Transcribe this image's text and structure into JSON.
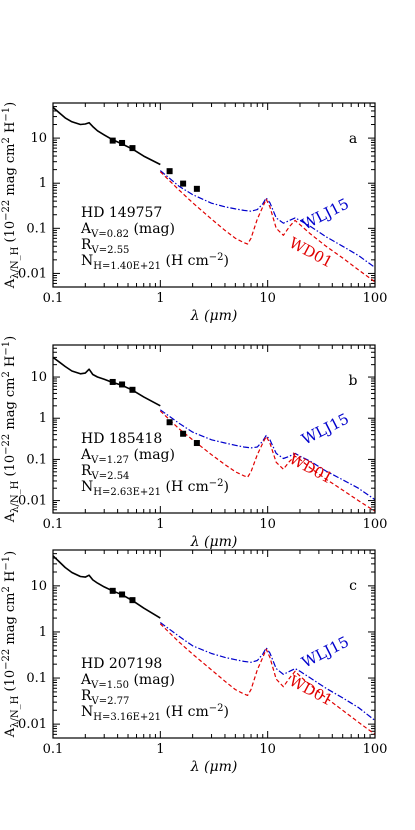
{
  "figure": {
    "y_axis_label": "A_λ/N_H (10^-22 mag cm^2 H^-1)",
    "x_axis_label": "λ (μm)"
  },
  "colors": {
    "obs": "#000000",
    "wlj15": "#0000cc",
    "wd01": "#e00000"
  },
  "chart_data": [
    {
      "type": "line",
      "panel_letter": "a",
      "star": "HD 149757",
      "annotations": [
        "HD 149757",
        "A_V=0.82 (mag)",
        "R_V=2.55",
        "N_H=1.40E+21 (H cm^-2)"
      ],
      "xlabel": "λ (μm)",
      "ylabel": "A_λ/N_H (10^-22 mag cm^2 H^-1)",
      "x_scale": "log",
      "y_scale": "log",
      "xlim": [
        0.1,
        100
      ],
      "ylim": [
        0.005,
        60
      ],
      "x_ticks": [
        "0.1",
        "1",
        "10",
        "100"
      ],
      "y_ticks": [
        "0.01",
        "0.1",
        "1",
        "10"
      ],
      "series": [
        {
          "name": "observed extinction curve",
          "style": "solid",
          "x": [
            0.1,
            0.115,
            0.13,
            0.15,
            0.18,
            0.2,
            0.217,
            0.235,
            0.26,
            0.3,
            0.35,
            0.44,
            0.55,
            0.7,
            1.0
          ],
          "y": [
            48,
            36,
            28,
            23,
            20,
            20.5,
            22,
            18,
            14.5,
            11.8,
            9.5,
            7.4,
            5.7,
            4.0,
            2.6
          ]
        },
        {
          "name": "WLJ15",
          "style": "dashdot",
          "x": [
            1.0,
            1.5,
            2.0,
            3.0,
            4.0,
            5.0,
            6.0,
            7.0,
            8.0,
            9.0,
            9.7,
            10.5,
            12.0,
            14.0,
            16.0,
            18.0,
            20.0,
            25.0,
            35.0,
            50.0,
            70.0,
            100.0
          ],
          "y": [
            1.9,
            0.85,
            0.56,
            0.36,
            0.3,
            0.27,
            0.25,
            0.24,
            0.26,
            0.35,
            0.47,
            0.37,
            0.17,
            0.13,
            0.15,
            0.17,
            0.15,
            0.11,
            0.065,
            0.04,
            0.025,
            0.0135
          ]
        },
        {
          "name": "WD01",
          "style": "dashed",
          "x": [
            1.0,
            1.5,
            2.0,
            3.0,
            4.0,
            5.0,
            6.0,
            6.5,
            7.0,
            8.0,
            9.0,
            9.7,
            10.5,
            12.0,
            14.0,
            16.0,
            18.0,
            20.0,
            25.0,
            35.0,
            50.0,
            70.0,
            100.0
          ],
          "y": [
            1.8,
            0.7,
            0.37,
            0.16,
            0.09,
            0.06,
            0.048,
            0.045,
            0.06,
            0.16,
            0.3,
            0.44,
            0.3,
            0.1,
            0.07,
            0.11,
            0.15,
            0.12,
            0.075,
            0.04,
            0.022,
            0.012,
            0.0065
          ]
        },
        {
          "name": "photometric points",
          "style": "markers",
          "x": [
            0.36,
            0.44,
            0.55,
            1.22,
            1.63,
            2.19
          ],
          "y": [
            8.8,
            7.8,
            6.0,
            1.85,
            0.98,
            0.75
          ]
        }
      ]
    },
    {
      "type": "line",
      "panel_letter": "b",
      "star": "HD 185418",
      "annotations": [
        "HD 185418",
        "A_V=1.27 (mag)",
        "R_V=2.54",
        "N_H=2.63E+21 (H cm^-2)"
      ],
      "xlabel": "λ (μm)",
      "ylabel": "A_λ/N_H (10^-22 mag cm^2 H^-1)",
      "x_scale": "log",
      "y_scale": "log",
      "xlim": [
        0.1,
        100
      ],
      "ylim": [
        0.005,
        60
      ],
      "x_ticks": [
        "0.1",
        "1",
        "10",
        "100"
      ],
      "y_ticks": [
        "0.01",
        "0.1",
        "1",
        "10"
      ],
      "series": [
        {
          "name": "observed extinction curve",
          "style": "solid",
          "x": [
            0.1,
            0.115,
            0.13,
            0.15,
            0.18,
            0.2,
            0.217,
            0.235,
            0.26,
            0.3,
            0.35,
            0.44,
            0.55,
            0.7,
            1.0
          ],
          "y": [
            30,
            23,
            18,
            14,
            12,
            12.5,
            15.5,
            11.5,
            10,
            8.8,
            7.6,
            6.3,
            4.8,
            3.3,
            2.0
          ]
        },
        {
          "name": "WLJ15",
          "style": "dashdot",
          "x": [
            1.0,
            1.5,
            2.0,
            3.0,
            4.0,
            5.0,
            6.0,
            7.0,
            8.0,
            9.0,
            9.7,
            10.5,
            12.0,
            14.0,
            16.0,
            18.0,
            20.0,
            25.0,
            35.0,
            50.0,
            70.0,
            100.0
          ],
          "y": [
            1.6,
            0.75,
            0.46,
            0.3,
            0.25,
            0.22,
            0.2,
            0.19,
            0.2,
            0.28,
            0.38,
            0.3,
            0.14,
            0.105,
            0.12,
            0.14,
            0.12,
            0.09,
            0.052,
            0.032,
            0.02,
            0.0105
          ]
        },
        {
          "name": "WD01",
          "style": "dashed",
          "x": [
            1.0,
            1.5,
            2.0,
            3.0,
            4.0,
            5.0,
            6.0,
            6.5,
            7.0,
            8.0,
            9.0,
            9.7,
            10.5,
            12.0,
            14.0,
            16.0,
            18.0,
            20.0,
            25.0,
            35.0,
            50.0,
            70.0,
            100.0
          ],
          "y": [
            1.5,
            0.55,
            0.3,
            0.13,
            0.075,
            0.05,
            0.04,
            0.037,
            0.05,
            0.13,
            0.25,
            0.36,
            0.25,
            0.085,
            0.058,
            0.09,
            0.12,
            0.1,
            0.062,
            0.033,
            0.018,
            0.01,
            0.0055
          ]
        },
        {
          "name": "photometric points",
          "style": "markers",
          "x": [
            0.36,
            0.44,
            0.55,
            1.22,
            1.63,
            2.19
          ],
          "y": [
            7.6,
            6.6,
            4.9,
            0.8,
            0.42,
            0.25
          ]
        }
      ]
    },
    {
      "type": "line",
      "panel_letter": "c",
      "star": "HD 207198",
      "annotations": [
        "HD 207198",
        "A_V=1.50 (mag)",
        "R_V=2.77",
        "N_H=3.16E+21 (H cm^-2)"
      ],
      "xlabel": "λ (μm)",
      "ylabel": "A_λ/N_H (10^-22 mag cm^2 H^-1)",
      "x_scale": "log",
      "y_scale": "log",
      "xlim": [
        0.1,
        100
      ],
      "ylim": [
        0.005,
        60
      ],
      "x_ticks": [
        "0.1",
        "1",
        "10",
        "100"
      ],
      "y_ticks": [
        "0.01",
        "0.1",
        "1",
        "10"
      ],
      "series": [
        {
          "name": "observed extinction curve",
          "style": "solid",
          "x": [
            0.1,
            0.115,
            0.13,
            0.15,
            0.18,
            0.2,
            0.217,
            0.235,
            0.26,
            0.3,
            0.35,
            0.44,
            0.55,
            0.7,
            1.0
          ],
          "y": [
            45,
            33,
            25,
            19.5,
            16,
            15.5,
            17,
            13.5,
            11.5,
            9.5,
            8.0,
            6.4,
            4.8,
            3.3,
            2.0
          ]
        },
        {
          "name": "WLJ15",
          "style": "dashdot",
          "x": [
            1.0,
            1.5,
            2.0,
            3.0,
            4.0,
            5.0,
            6.0,
            7.0,
            8.0,
            9.0,
            9.7,
            10.5,
            12.0,
            14.0,
            16.0,
            18.0,
            20.0,
            25.0,
            35.0,
            50.0,
            70.0,
            100.0
          ],
          "y": [
            1.6,
            0.8,
            0.5,
            0.34,
            0.28,
            0.25,
            0.23,
            0.22,
            0.24,
            0.33,
            0.45,
            0.35,
            0.16,
            0.12,
            0.14,
            0.16,
            0.14,
            0.1,
            0.06,
            0.037,
            0.023,
            0.012
          ]
        },
        {
          "name": "WD01",
          "style": "dashed",
          "x": [
            1.0,
            1.5,
            2.0,
            3.0,
            4.0,
            5.0,
            6.0,
            6.5,
            7.0,
            8.0,
            9.0,
            9.7,
            10.5,
            12.0,
            14.0,
            16.0,
            18.0,
            20.0,
            25.0,
            35.0,
            50.0,
            70.0,
            100.0
          ],
          "y": [
            1.5,
            0.6,
            0.33,
            0.15,
            0.085,
            0.056,
            0.045,
            0.042,
            0.056,
            0.15,
            0.28,
            0.42,
            0.28,
            0.095,
            0.065,
            0.1,
            0.14,
            0.11,
            0.07,
            0.037,
            0.02,
            0.011,
            0.006
          ]
        },
        {
          "name": "photometric points",
          "style": "markers",
          "x": [
            0.36,
            0.44,
            0.55
          ],
          "y": [
            7.8,
            6.5,
            4.9
          ]
        }
      ]
    }
  ]
}
